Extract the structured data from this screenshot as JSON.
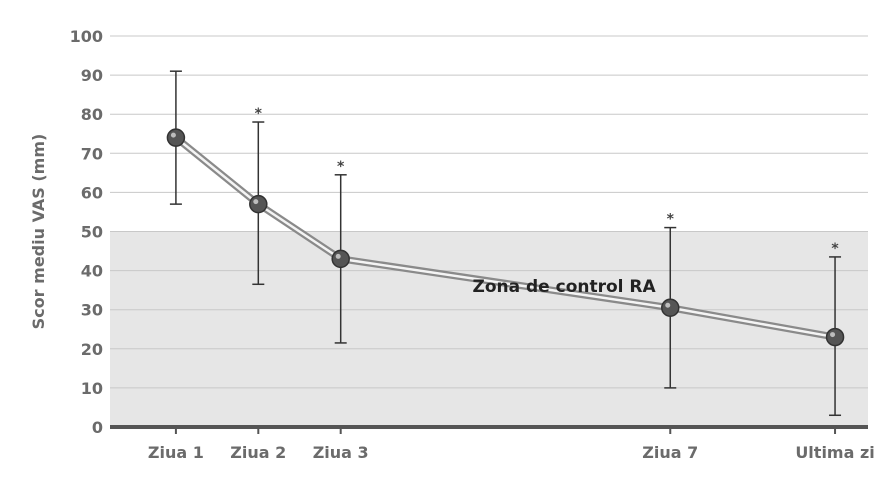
{
  "chart_data": {
    "type": "line",
    "title": "",
    "xlabel": "",
    "ylabel": "Scor mediu VAS (mm)",
    "ylim": [
      0,
      100
    ],
    "yticks": [
      0,
      10,
      20,
      30,
      40,
      50,
      60,
      70,
      80,
      90,
      100
    ],
    "grid": true,
    "categories": [
      "Ziua 1",
      "Ziua 2",
      "Ziua 3",
      "Ziua 7",
      "Ultima zi"
    ],
    "x": [
      1,
      2,
      3,
      7,
      9
    ],
    "series": [
      {
        "values": [
          74,
          57,
          43,
          30.5,
          23
        ],
        "error_upper": [
          91,
          78,
          64.5,
          51,
          43.5
        ],
        "error_lower": [
          57,
          36.5,
          21.5,
          10,
          3
        ],
        "significance": [
          "",
          "*",
          "*",
          "*",
          "*"
        ]
      }
    ],
    "shaded_region": {
      "label": "Zona de control RA",
      "y_range": [
        0,
        50
      ],
      "color": "#e6e6e6"
    },
    "colors": {
      "line": "#8a8a8a",
      "marker": "#555555",
      "errorbar": "#333333",
      "grid": "#c8c8c8",
      "axis": "#555555"
    }
  }
}
